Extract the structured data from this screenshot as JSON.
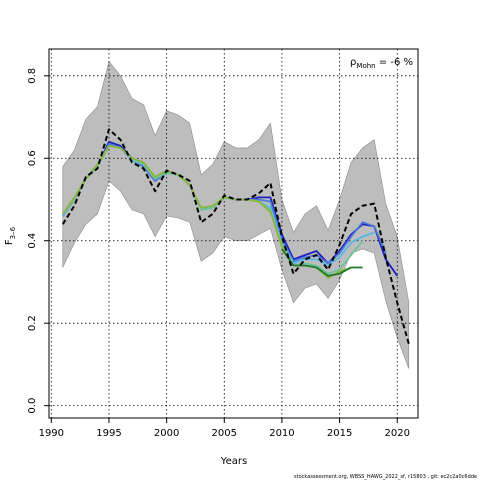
{
  "chart_data": {
    "type": "line",
    "xlabel": "Years",
    "ylabel_base": "F",
    "ylabel_sub": "3–6",
    "xlim": [
      1989.8,
      2021.8
    ],
    "ylim": [
      -0.03,
      0.865
    ],
    "xticks": [
      1990,
      1995,
      2000,
      2005,
      2010,
      2015,
      2020
    ],
    "yticks": [
      0.0,
      0.2,
      0.4,
      0.6,
      0.8
    ],
    "grid": true,
    "annotation_rho": "ρ",
    "annotation_sub": "Mohn",
    "annotation_value": " = -6 %",
    "credit": "stockassessment.org,  WBSS_HAWG_2022_sf,  r15803 ,  git: ec2c2a0c6dde",
    "band": {
      "x": [
        1991,
        1992,
        1993,
        1994,
        1995,
        1996,
        1997,
        1998,
        1999,
        2000,
        2001,
        2002,
        2003,
        2004,
        2005,
        2006,
        2007,
        2008,
        2009,
        2010,
        2011,
        2012,
        2013,
        2014,
        2015,
        2016,
        2017,
        2018,
        2019,
        2020,
        2021
      ],
      "upper": [
        0.58,
        0.62,
        0.695,
        0.725,
        0.835,
        0.8,
        0.745,
        0.73,
        0.655,
        0.715,
        0.705,
        0.685,
        0.56,
        0.585,
        0.64,
        0.625,
        0.625,
        0.645,
        0.685,
        0.5,
        0.42,
        0.465,
        0.485,
        0.425,
        0.5,
        0.59,
        0.625,
        0.645,
        0.49,
        0.41,
        0.25
      ],
      "lower": [
        0.335,
        0.395,
        0.44,
        0.465,
        0.545,
        0.52,
        0.475,
        0.465,
        0.41,
        0.46,
        0.455,
        0.445,
        0.35,
        0.37,
        0.41,
        0.4,
        0.4,
        0.415,
        0.43,
        0.33,
        0.25,
        0.285,
        0.295,
        0.26,
        0.305,
        0.37,
        0.38,
        0.37,
        0.255,
        0.165,
        0.09
      ]
    },
    "series": [
      {
        "color": "#000000",
        "dashed": true,
        "x": [
          1991,
          1992,
          1993,
          1994,
          1995,
          1996,
          1997,
          1998,
          1999,
          2000,
          2001,
          2002,
          2003,
          2004,
          2005,
          2006,
          2007,
          2008,
          2009,
          2010,
          2011,
          2012,
          2013,
          2014,
          2015,
          2016,
          2017,
          2018,
          2019,
          2020,
          2021
        ],
        "y": [
          0.44,
          0.485,
          0.555,
          0.575,
          0.67,
          0.645,
          0.59,
          0.575,
          0.52,
          0.57,
          0.56,
          0.545,
          0.445,
          0.465,
          0.51,
          0.5,
          0.5,
          0.515,
          0.54,
          0.41,
          0.32,
          0.355,
          0.365,
          0.33,
          0.39,
          0.465,
          0.485,
          0.49,
          0.36,
          0.25,
          0.15
        ]
      },
      {
        "color": "#2020c0",
        "x": [
          1991,
          1992,
          1993,
          1994,
          1995,
          1996,
          1997,
          1998,
          1999,
          2000,
          2001,
          2002,
          2003,
          2004,
          2005,
          2006,
          2007,
          2008,
          2009,
          2010,
          2011,
          2012,
          2013,
          2014,
          2015,
          2016,
          2017,
          2018,
          2019,
          2020
        ],
        "y": [
          0.46,
          0.5,
          0.55,
          0.58,
          0.64,
          0.63,
          0.6,
          0.58,
          0.545,
          0.565,
          0.56,
          0.535,
          0.475,
          0.48,
          0.505,
          0.5,
          0.5,
          0.505,
          0.505,
          0.415,
          0.355,
          0.365,
          0.375,
          0.345,
          0.375,
          0.415,
          0.44,
          0.435,
          0.355,
          0.315
        ]
      },
      {
        "color": "#4a7ad8",
        "x": [
          1991,
          1992,
          1993,
          1994,
          1995,
          1996,
          1997,
          1998,
          1999,
          2000,
          2001,
          2002,
          2003,
          2004,
          2005,
          2006,
          2007,
          2008,
          2009,
          2010,
          2011,
          2012,
          2013,
          2014,
          2015,
          2016,
          2017,
          2018,
          2019
        ],
        "y": [
          0.46,
          0.5,
          0.55,
          0.58,
          0.635,
          0.625,
          0.595,
          0.58,
          0.545,
          0.565,
          0.56,
          0.535,
          0.475,
          0.48,
          0.505,
          0.5,
          0.5,
          0.5,
          0.495,
          0.405,
          0.35,
          0.36,
          0.365,
          0.345,
          0.37,
          0.41,
          0.445,
          0.435,
          0.37
        ]
      },
      {
        "color": "#5ab8e6",
        "x": [
          1991,
          1992,
          1993,
          1994,
          1995,
          1996,
          1997,
          1998,
          1999,
          2000,
          2001,
          2002,
          2003,
          2004,
          2005,
          2006,
          2007,
          2008,
          2009,
          2010,
          2011,
          2012,
          2013,
          2014,
          2015,
          2016,
          2017,
          2018
        ],
        "y": [
          0.46,
          0.5,
          0.55,
          0.58,
          0.63,
          0.625,
          0.595,
          0.585,
          0.55,
          0.565,
          0.56,
          0.535,
          0.475,
          0.48,
          0.505,
          0.5,
          0.5,
          0.495,
          0.48,
          0.395,
          0.345,
          0.355,
          0.355,
          0.34,
          0.36,
          0.395,
          0.41,
          0.42
        ]
      },
      {
        "color": "#6cc49a",
        "x": [
          1991,
          1992,
          1993,
          1994,
          1995,
          1996,
          1997,
          1998,
          1999,
          2000,
          2001,
          2002,
          2003,
          2004,
          2005,
          2006,
          2007,
          2008,
          2009,
          2010,
          2011,
          2012,
          2013,
          2014,
          2015,
          2016,
          2017
        ],
        "y": [
          0.465,
          0.5,
          0.55,
          0.58,
          0.63,
          0.625,
          0.6,
          0.585,
          0.55,
          0.565,
          0.56,
          0.535,
          0.475,
          0.48,
          0.505,
          0.5,
          0.5,
          0.495,
          0.475,
          0.39,
          0.34,
          0.345,
          0.34,
          0.32,
          0.33,
          0.365,
          0.4
        ]
      },
      {
        "color": "#8cb53c",
        "x": [
          1991,
          1992,
          1993,
          1994,
          1995,
          1996,
          1997,
          1998,
          1999,
          2000,
          2001,
          2002,
          2003,
          2004,
          2005,
          2006,
          2007,
          2008,
          2009,
          2010,
          2011,
          2012,
          2013,
          2014,
          2015,
          2016
        ],
        "y": [
          0.465,
          0.505,
          0.55,
          0.585,
          0.63,
          0.625,
          0.6,
          0.59,
          0.555,
          0.57,
          0.56,
          0.535,
          0.48,
          0.485,
          0.505,
          0.5,
          0.5,
          0.495,
          0.47,
          0.385,
          0.34,
          0.34,
          0.335,
          0.31,
          0.325,
          0.335
        ]
      },
      {
        "color": "#1f7a2c",
        "x": [
          2010,
          2011,
          2012,
          2013,
          2014,
          2015,
          2016,
          2017
        ],
        "y": [
          0.38,
          0.34,
          0.34,
          0.335,
          0.315,
          0.32,
          0.335,
          0.335
        ]
      }
    ]
  }
}
